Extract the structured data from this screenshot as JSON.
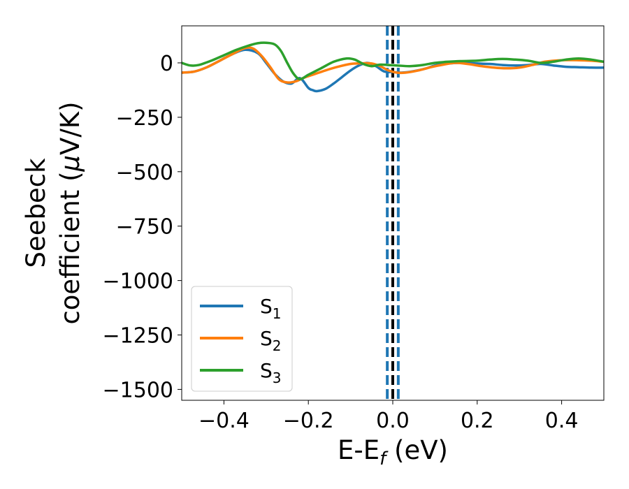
{
  "chart_data": {
    "type": "line",
    "xlabel": {
      "base": "E-E",
      "sub": "f",
      "unit": " (eV)"
    },
    "ylabel": {
      "line1": "Seebeck",
      "line2_prefix": "coefficient  (",
      "mu": "μ",
      "line2_suffix": "V/K)"
    },
    "xlim": [
      -0.5,
      0.5
    ],
    "ylim": [
      -1550,
      170
    ],
    "xticks": [
      -0.4,
      -0.2,
      0.0,
      0.2,
      0.4
    ],
    "xtick_labels": [
      "−0.4",
      "−0.2",
      "0.0",
      "0.2",
      "0.4"
    ],
    "yticks": [
      0,
      -250,
      -500,
      -750,
      -1000,
      -1250,
      -1500
    ],
    "ytick_labels": [
      "0",
      "−250",
      "−500",
      "−750",
      "−1000",
      "−1250",
      "−1500"
    ],
    "grid": false,
    "legend_position": "lower-left",
    "vlines": [
      {
        "x": -0.013,
        "color": "#1f77b4",
        "style": "dashed"
      },
      {
        "x": 0.0,
        "color": "#000000",
        "style": "dashed"
      },
      {
        "x": 0.013,
        "color": "#1f77b4",
        "style": "dashed"
      }
    ],
    "series": [
      {
        "name": "S",
        "sub": "1",
        "color": "#1f77b4",
        "x": [
          -0.5,
          -0.47,
          -0.44,
          -0.41,
          -0.38,
          -0.35,
          -0.32,
          -0.3,
          -0.28,
          -0.26,
          -0.24,
          -0.22,
          -0.2,
          -0.19,
          -0.18,
          -0.16,
          -0.14,
          -0.12,
          -0.1,
          -0.08,
          -0.06,
          -0.04,
          -0.02,
          0.0,
          0.02,
          0.05,
          0.08,
          0.1,
          0.13,
          0.16,
          0.2,
          0.23,
          0.26,
          0.29,
          0.32,
          0.35,
          0.38,
          0.41,
          0.44,
          0.47,
          0.5
        ],
        "y": [
          -45,
          -40,
          -20,
          10,
          40,
          60,
          45,
          0,
          -50,
          -85,
          -95,
          -70,
          -115,
          -125,
          -130,
          -120,
          -95,
          -65,
          -35,
          -12,
          0,
          -15,
          -40,
          -42,
          -45,
          -38,
          -25,
          -12,
          -3,
          0,
          -3,
          -5,
          -10,
          -12,
          -10,
          -5,
          -12,
          -18,
          -20,
          -22,
          -22
        ]
      },
      {
        "name": "S",
        "sub": "2",
        "color": "#ff7f0e",
        "x": [
          -0.5,
          -0.47,
          -0.44,
          -0.41,
          -0.38,
          -0.35,
          -0.33,
          -0.31,
          -0.29,
          -0.27,
          -0.25,
          -0.23,
          -0.21,
          -0.19,
          -0.16,
          -0.13,
          -0.1,
          -0.07,
          -0.05,
          -0.03,
          -0.01,
          0.01,
          0.03,
          0.06,
          0.09,
          0.12,
          0.15,
          0.18,
          0.21,
          0.24,
          0.27,
          0.3,
          0.33,
          0.36,
          0.4,
          0.44,
          0.47,
          0.5
        ],
        "y": [
          -45,
          -40,
          -20,
          10,
          40,
          68,
          65,
          30,
          -20,
          -75,
          -90,
          -85,
          -68,
          -55,
          -35,
          -18,
          -5,
          -2,
          -3,
          -15,
          -35,
          -45,
          -45,
          -35,
          -20,
          -8,
          0,
          -6,
          -15,
          -22,
          -25,
          -22,
          -10,
          5,
          12,
          12,
          10,
          5
        ]
      },
      {
        "name": "S",
        "sub": "3",
        "color": "#2ca02c",
        "x": [
          -0.5,
          -0.48,
          -0.46,
          -0.43,
          -0.4,
          -0.37,
          -0.34,
          -0.32,
          -0.3,
          -0.28,
          -0.265,
          -0.25,
          -0.235,
          -0.22,
          -0.2,
          -0.17,
          -0.14,
          -0.11,
          -0.09,
          -0.07,
          -0.05,
          -0.03,
          -0.01,
          0.01,
          0.04,
          0.07,
          0.1,
          0.13,
          0.16,
          0.2,
          0.23,
          0.26,
          0.29,
          0.32,
          0.35,
          0.38,
          0.41,
          0.44,
          0.47,
          0.5
        ],
        "y": [
          0,
          -12,
          -10,
          10,
          35,
          60,
          80,
          90,
          92,
          85,
          55,
          0,
          -50,
          -75,
          -55,
          -25,
          5,
          20,
          15,
          -5,
          -15,
          -8,
          -10,
          -12,
          -15,
          -10,
          0,
          5,
          8,
          10,
          15,
          18,
          15,
          10,
          0,
          5,
          15,
          20,
          15,
          5
        ]
      }
    ]
  }
}
